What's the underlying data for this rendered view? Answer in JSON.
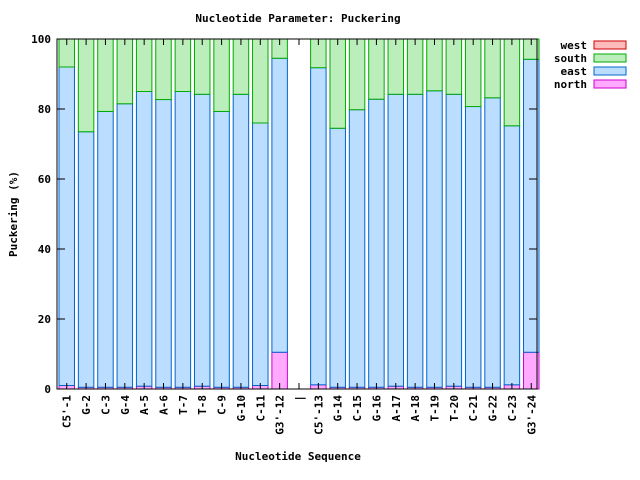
{
  "chart_data": {
    "type": "bar",
    "stacked": true,
    "title": "Nucleotide Parameter: Puckering",
    "xlabel": "Nucleotide Sequence",
    "ylabel": "Puckering (%)",
    "ylim": [
      0,
      100
    ],
    "yticks": [
      0,
      20,
      40,
      60,
      80,
      100
    ],
    "grid": false,
    "legend_position": "top-right",
    "legend_order": [
      "west",
      "south",
      "east",
      "north"
    ],
    "categories": [
      "C5'-1",
      "G-2",
      "C-3",
      "G-4",
      "A-5",
      "A-6",
      "T-7",
      "T-8",
      "C-9",
      "G-10",
      "C-11",
      "G3'-12",
      "|",
      "C5'-13",
      "G-14",
      "C-15",
      "G-16",
      "A-17",
      "A-18",
      "T-19",
      "T-20",
      "C-21",
      "G-22",
      "C-23",
      "G3'-24"
    ],
    "series": [
      {
        "name": "north",
        "color": "#ffaaff",
        "edge": "#cc00cc",
        "values": [
          1.0,
          0.5,
          0.5,
          0.5,
          0.8,
          0.5,
          0.5,
          0.8,
          0.5,
          0.5,
          1.0,
          10.5,
          0,
          1.2,
          0.5,
          0.5,
          0.5,
          0.8,
          0.5,
          0.5,
          0.8,
          0.5,
          0.5,
          1.2,
          10.5
        ]
      },
      {
        "name": "east",
        "color": "#bbddff",
        "edge": "#0066cc",
        "values": [
          91.0,
          73.0,
          78.8,
          81.0,
          84.2,
          82.2,
          84.5,
          83.4,
          78.8,
          83.7,
          75.0,
          84.0,
          0,
          90.6,
          74.0,
          79.3,
          82.3,
          83.4,
          83.7,
          84.7,
          83.4,
          80.2,
          82.7,
          74.0,
          83.7
        ]
      },
      {
        "name": "south",
        "color": "#bbeebb",
        "edge": "#00aa00",
        "values": [
          8.0,
          26.5,
          20.7,
          18.5,
          15.0,
          17.3,
          15.0,
          15.8,
          20.7,
          15.8,
          24.0,
          5.5,
          0,
          8.2,
          25.5,
          20.2,
          17.2,
          15.8,
          15.8,
          14.8,
          15.8,
          19.3,
          16.8,
          24.8,
          5.8
        ]
      },
      {
        "name": "west",
        "color": "#ffbbbb",
        "edge": "#cc0000",
        "values": [
          0,
          0,
          0,
          0,
          0,
          0,
          0,
          0,
          0,
          0,
          0,
          0,
          0,
          0,
          0,
          0,
          0,
          0,
          0,
          0,
          0,
          0,
          0,
          0,
          0
        ]
      }
    ]
  }
}
